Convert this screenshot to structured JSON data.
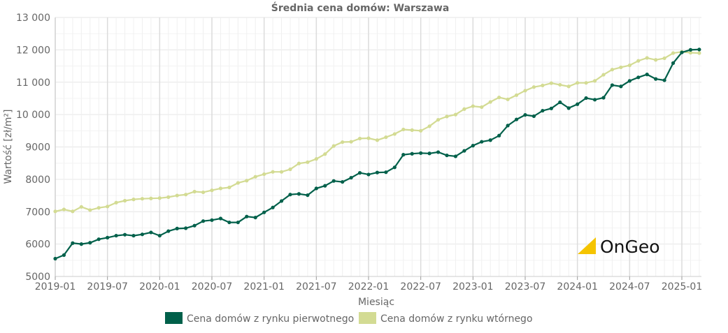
{
  "chart_data": {
    "type": "line",
    "title": "Średnia cena domów: Warszawa",
    "xlabel": "Miesiąc",
    "ylabel": "Wartość [zł/m²]",
    "ylim": [
      5000,
      13000
    ],
    "yticks": [
      5000,
      6000,
      7000,
      8000,
      9000,
      10000,
      11000,
      12000,
      13000
    ],
    "ytick_labels": [
      "5000",
      "6000",
      "7000",
      "8000",
      "9000",
      "10 000",
      "11 000",
      "12 000",
      "13 000"
    ],
    "xstart": "2019-01",
    "xtick_labels": [
      "2019-01",
      "2019-07",
      "2020-01",
      "2020-07",
      "2021-01",
      "2021-07",
      "2022-01",
      "2022-07",
      "2023-01",
      "2023-07",
      "2024-01",
      "2024-07",
      "2025-01"
    ],
    "grid": true,
    "legend_position": "bottom",
    "series": [
      {
        "name": "Cena domów z rynku pierwotnego",
        "color": "#00604a",
        "values": [
          5550,
          5660,
          6030,
          6000,
          6040,
          6150,
          6200,
          6260,
          6290,
          6260,
          6300,
          6360,
          6260,
          6400,
          6480,
          6490,
          6570,
          6710,
          6740,
          6790,
          6670,
          6670,
          6850,
          6820,
          6980,
          7130,
          7330,
          7530,
          7550,
          7510,
          7720,
          7800,
          7950,
          7920,
          8050,
          8200,
          8150,
          8210,
          8220,
          8370,
          8760,
          8790,
          8810,
          8800,
          8840,
          8740,
          8710,
          8880,
          9040,
          9160,
          9210,
          9350,
          9660,
          9850,
          9990,
          9950,
          10120,
          10190,
          10380,
          10200,
          10320,
          10510,
          10460,
          10520,
          10910,
          10870,
          11040,
          11150,
          11240,
          11100,
          11060,
          11590,
          11920,
          12000,
          12010
        ]
      },
      {
        "name": "Cena domów z rynku wtórnego",
        "color": "#d3db93",
        "values": [
          7010,
          7070,
          7010,
          7150,
          7050,
          7120,
          7160,
          7280,
          7340,
          7380,
          7400,
          7410,
          7420,
          7450,
          7500,
          7530,
          7620,
          7600,
          7660,
          7720,
          7750,
          7890,
          7960,
          8080,
          8160,
          8230,
          8230,
          8310,
          8490,
          8530,
          8630,
          8780,
          9030,
          9150,
          9160,
          9260,
          9270,
          9210,
          9300,
          9400,
          9540,
          9520,
          9500,
          9640,
          9840,
          9940,
          10000,
          10170,
          10260,
          10230,
          10390,
          10530,
          10470,
          10600,
          10740,
          10850,
          10900,
          10970,
          10920,
          10870,
          10980,
          10980,
          11040,
          11230,
          11390,
          11460,
          11520,
          11660,
          11750,
          11690,
          11740,
          11900,
          11940,
          11910,
          11900
        ]
      }
    ]
  },
  "watermark": "OnGeo"
}
